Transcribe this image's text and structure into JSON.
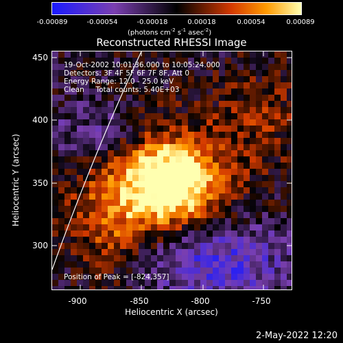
{
  "colorbar": {
    "ticks": [
      "-0.00089",
      "-0.00054",
      "-0.00018",
      "0.00018",
      "0.00054",
      "0.00089"
    ],
    "unit_prefix": "(photons cm",
    "unit_e1": "-2",
    "unit_mid": " s",
    "unit_e2": "-1",
    "unit_mid2": " asec",
    "unit_e3": "-2",
    "unit_suffix": ")"
  },
  "title": "Reconstructed RHESSI Image",
  "annotations": {
    "time": "19-Oct-2002 10:01:36.000 to 10:05:24.000",
    "detectors": "Detectors: 3F 4F 5F 6F 7F 8F, Att 0",
    "energy": "Energy Range: 12.0 - 25.0 keV",
    "clean": "Clean     Total counts: 5.40E+03",
    "peak": "Position of Peak = [-824,357]"
  },
  "axes": {
    "xlabel": "Heliocentric X (arcsec)",
    "ylabel": "Heliocentric Y (arcsec)",
    "xticks": [
      "-900",
      "-850",
      "-800",
      "-750"
    ],
    "yticks": [
      "450",
      "400",
      "350",
      "300"
    ]
  },
  "footer": "2-May-2022 12:20",
  "colors": {
    "low": "#1a1aff",
    "mid_low": "#7a3fb0",
    "zero": "#000000",
    "mid_high": "#d43a00",
    "high": "#ff9a00",
    "peak": "#ffffb0"
  }
}
